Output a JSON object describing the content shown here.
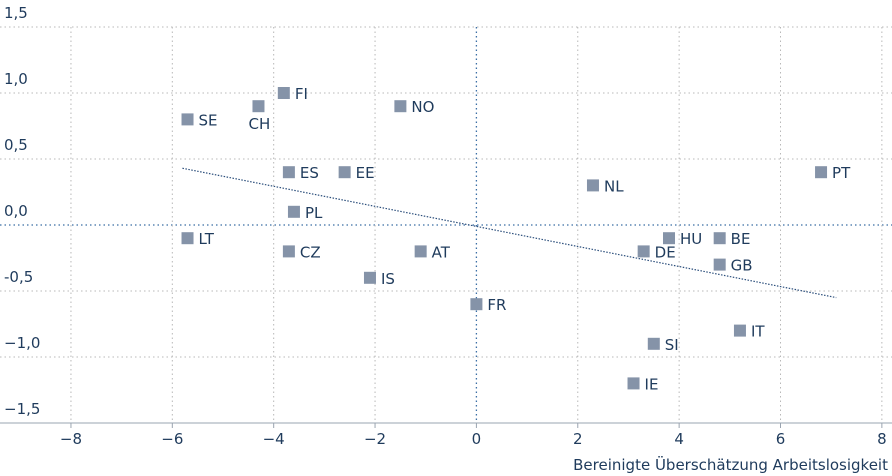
{
  "chart_data": {
    "type": "scatter",
    "x_label": "Bereinigte Überschätzung Arbeitslosigkeit",
    "color": "#8593a8",
    "series": [
      {
        "name": null,
        "labels": [
          "SE",
          "CH",
          "FI",
          "NO",
          "ES",
          "EE",
          "PL",
          "NL",
          "PT",
          "LT",
          "CZ",
          "AT",
          "IS",
          "FR",
          "HU",
          "BE",
          "DE",
          "GB",
          "IT",
          "SI",
          "IE"
        ],
        "x": [
          -5.7,
          -4.3,
          -3.8,
          -1.5,
          -3.7,
          -2.6,
          -3.6,
          2.3,
          6.8,
          -5.7,
          -3.7,
          -1.1,
          -2.1,
          0,
          3.8,
          4.8,
          3.3,
          4.8,
          5.2,
          3.5,
          3.1
        ],
        "values": [
          0.8,
          0.9,
          1.0,
          0.9,
          0.4,
          0.4,
          0.1,
          0.3,
          0.4,
          -0.1,
          -0.2,
          -0.2,
          -0.4,
          -0.6,
          -0.1,
          -0.1,
          -0.2,
          -0.3,
          -0.8,
          -0.9,
          -1.2
        ]
      }
    ],
    "trendline": {
      "x": [
        -5.8,
        7.1
      ],
      "values": [
        0.43,
        -0.55
      ]
    },
    "xlim": [
      -9.4,
      8.2
    ],
    "ylim": [
      -1.5,
      1.5
    ],
    "xticks": [
      {
        "value": -8,
        "label": "−8"
      },
      {
        "value": -6,
        "label": "−6"
      },
      {
        "value": -4,
        "label": "−4"
      },
      {
        "value": -2,
        "label": "−2"
      },
      0,
      2,
      4,
      6,
      8
    ],
    "yticks": [
      {
        "value": -1.5,
        "label": "−1,5"
      },
      {
        "value": -1.0,
        "label": "−1,0"
      },
      {
        "value": -0.5,
        "label": "-0,5"
      },
      {
        "value": 0,
        "label": "0,0"
      },
      {
        "value": 0.5,
        "label": "0,5"
      },
      {
        "value": 1.0,
        "label": "1,0"
      },
      {
        "value": 1.5,
        "label": "1,5"
      }
    ],
    "grid": true
  }
}
